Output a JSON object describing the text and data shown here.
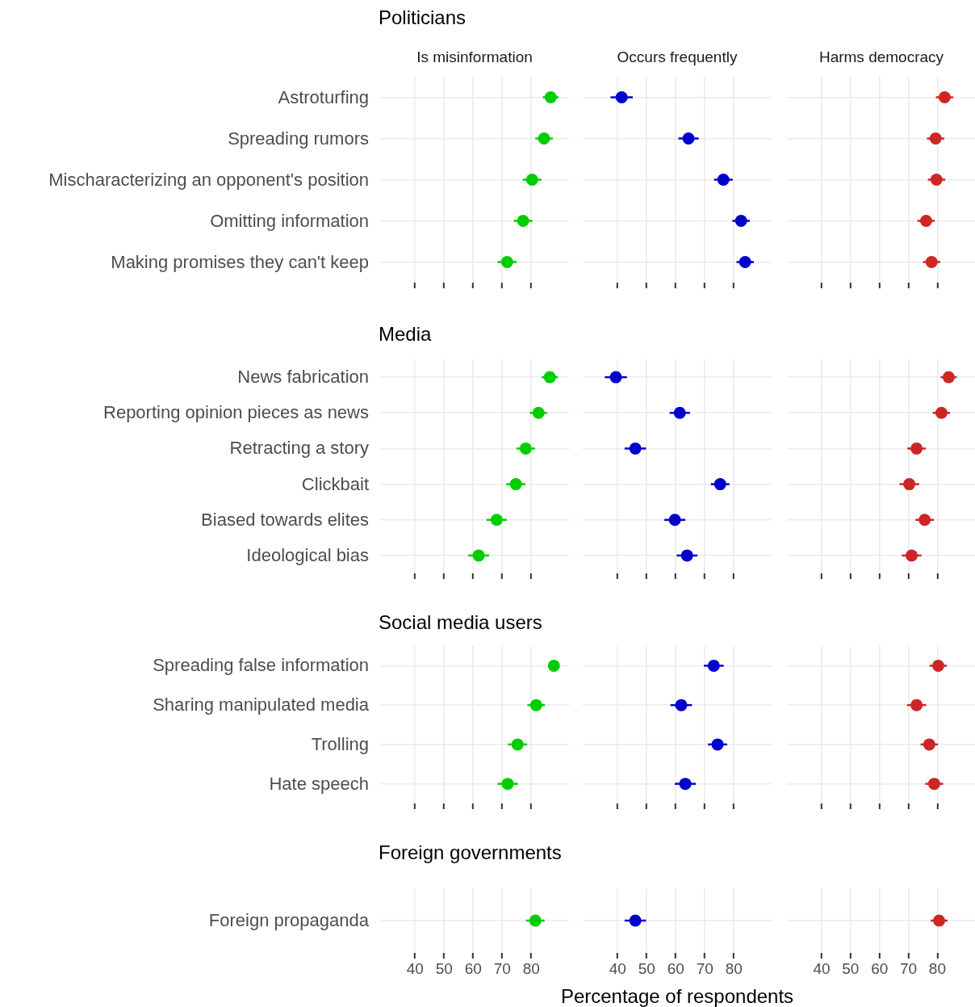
{
  "chart_data": [
    {
      "type": "scatter",
      "title": "Politicians",
      "subtitle": "Is misinformation",
      "orientation": "horizontal",
      "categories": [
        "Astroturfing",
        "Spreading rumors",
        "Mischaracterizing an opponent's position",
        "Omitting information",
        "Making promises they can't keep"
      ],
      "values": [
        86.7,
        84.4,
        80.3,
        77.2,
        71.7
      ],
      "errors": [
        2.7,
        3,
        3.2,
        3.2,
        3.3
      ],
      "color": "#00cd00",
      "marker": "circle",
      "xlim": [
        28,
        93
      ],
      "xticks": [
        40,
        50,
        60,
        70,
        80
      ],
      "grid": true,
      "tick_labels": "y"
    },
    {
      "type": "scatter",
      "subtitle": "Occurs frequently",
      "orientation": "horizontal",
      "values": [
        41.4,
        64.4,
        76.4,
        82.5,
        83.9
      ],
      "errors": [
        3.8,
        3.5,
        3.2,
        3,
        3
      ],
      "color": "#0000cd",
      "marker": "circle",
      "xlim": [
        28,
        93
      ],
      "xticks": [
        40,
        50,
        60,
        70,
        80
      ],
      "grid": true,
      "tick_labels": false
    },
    {
      "type": "scatter",
      "subtitle": "Harms democracy",
      "orientation": "horizontal",
      "values": [
        82.5,
        79.4,
        79.7,
        76.1,
        78
      ],
      "errors": [
        3,
        3,
        3,
        3,
        3
      ],
      "color": "#cd2626",
      "marker": "circle",
      "xlim": [
        28,
        93
      ],
      "xticks": [
        40,
        50,
        60,
        70,
        80
      ],
      "grid": true,
      "tick_labels": false
    },
    {
      "type": "scatter",
      "title": "Media",
      "orientation": "horizontal",
      "categories": [
        "News fabrication",
        "Reporting opinion pieces as news",
        "Retracting a story",
        "Clickbait",
        "Biased towards elites",
        "Ideological bias"
      ],
      "values": [
        86.4,
        82.5,
        78.1,
        74.7,
        68.1,
        61.9
      ],
      "errors": [
        2.8,
        3,
        3.2,
        3.3,
        3.5,
        3.6
      ],
      "color": "#00cd00",
      "marker": "circle",
      "xlim": [
        28,
        93
      ],
      "xticks": [
        40,
        50,
        60,
        70,
        80
      ],
      "grid": true,
      "tick_labels": "y"
    },
    {
      "type": "scatter",
      "orientation": "horizontal",
      "values": [
        39.4,
        61.4,
        46.1,
        75.3,
        59.7,
        63.9
      ],
      "errors": [
        3.8,
        3.5,
        3.7,
        3.2,
        3.6,
        3.6
      ],
      "color": "#0000cd",
      "marker": "circle",
      "xlim": [
        28,
        93
      ],
      "xticks": [
        40,
        50,
        60,
        70,
        80
      ],
      "grid": true,
      "tick_labels": false
    },
    {
      "type": "scatter",
      "orientation": "horizontal",
      "values": [
        83.9,
        81.4,
        72.8,
        70.3,
        75.6,
        71.1
      ],
      "errors": [
        2.8,
        3,
        3.2,
        3.4,
        3.2,
        3.4
      ],
      "color": "#cd2626",
      "marker": "circle",
      "xlim": [
        28,
        93
      ],
      "xticks": [
        40,
        50,
        60,
        70,
        80
      ],
      "grid": true,
      "tick_labels": false
    },
    {
      "type": "scatter",
      "title": "Social media users",
      "orientation": "horizontal",
      "categories": [
        "Spreading false information",
        "Sharing manipulated media",
        "Trolling",
        "Hate speech"
      ],
      "values": [
        87.8,
        81.7,
        75.3,
        71.9
      ],
      "errors": [
        null,
        3,
        3.3,
        3.5
      ],
      "color": "#00cd00",
      "marker": "circle",
      "xlim": [
        28,
        93
      ],
      "xticks": [
        40,
        50,
        60,
        70,
        80
      ],
      "grid": true,
      "tick_labels": "y"
    },
    {
      "type": "scatter",
      "orientation": "horizontal",
      "values": [
        73.1,
        61.9,
        74.4,
        63.3
      ],
      "errors": [
        3.4,
        3.7,
        3.3,
        3.6
      ],
      "color": "#0000cd",
      "marker": "circle",
      "xlim": [
        28,
        93
      ],
      "xticks": [
        40,
        50,
        60,
        70,
        80
      ],
      "grid": true,
      "tick_labels": false
    },
    {
      "type": "scatter",
      "orientation": "horizontal",
      "values": [
        80.3,
        72.8,
        77.2,
        78.9
      ],
      "errors": [
        3,
        3.3,
        3,
        3.1
      ],
      "color": "#cd2626",
      "marker": "circle",
      "xlim": [
        28,
        93
      ],
      "xticks": [
        40,
        50,
        60,
        70,
        80
      ],
      "grid": true,
      "tick_labels": false
    },
    {
      "type": "scatter",
      "title": "Foreign governments",
      "orientation": "horizontal",
      "categories": [
        "Foreign propaganda"
      ],
      "values": [
        81.4
      ],
      "errors": [
        3.2
      ],
      "color": "#00cd00",
      "marker": "circle",
      "xlim": [
        28,
        93
      ],
      "xticks": [
        40,
        50,
        60,
        70,
        80
      ],
      "grid": true
    },
    {
      "type": "scatter",
      "xlabel": "Percentage of respondents",
      "orientation": "horizontal",
      "values": [
        46.1
      ],
      "errors": [
        3.7
      ],
      "color": "#0000cd",
      "marker": "circle",
      "xlim": [
        28,
        93
      ],
      "xticks": [
        40,
        50,
        60,
        70,
        80
      ],
      "grid": true,
      "tick_labels": "x"
    },
    {
      "type": "scatter",
      "orientation": "horizontal",
      "values": [
        80.6
      ],
      "errors": [
        2.9
      ],
      "color": "#cd2626",
      "marker": "circle",
      "xlim": [
        28,
        93
      ],
      "xticks": [
        40,
        50,
        60,
        70,
        80
      ],
      "grid": true,
      "tick_labels": "x"
    }
  ]
}
